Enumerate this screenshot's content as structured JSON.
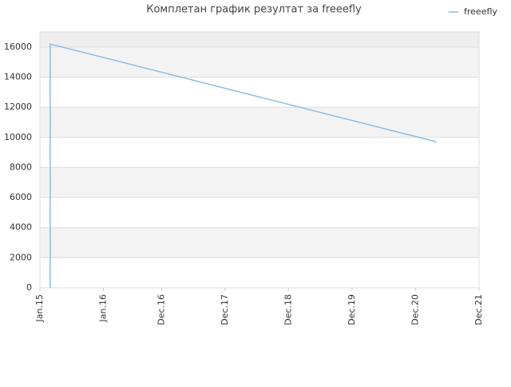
{
  "chart_data": {
    "type": "line",
    "title": "Комплетан график резултат за freeefly",
    "x": [
      "2015-03",
      "2015-03",
      "2021-04"
    ],
    "series": [
      {
        "name": "freeefly",
        "color": "#88bde8",
        "values": [
          0,
          16200,
          9700
        ]
      }
    ],
    "xlim": [
      "2015-01",
      "2021-12"
    ],
    "xticks": [
      {
        "value": "2015-01",
        "label": "Jan.15"
      },
      {
        "value": "2016-01",
        "label": "Jan.16"
      },
      {
        "value": "2016-12",
        "label": "Dec.16"
      },
      {
        "value": "2017-12",
        "label": "Dec.17"
      },
      {
        "value": "2018-12",
        "label": "Dec.18"
      },
      {
        "value": "2019-12",
        "label": "Dec.19"
      },
      {
        "value": "2020-12",
        "label": "Dec.20"
      },
      {
        "value": "2021-12",
        "label": "Dec.21"
      }
    ],
    "ylim": [
      0,
      17000
    ],
    "yticks": [
      0,
      2000,
      4000,
      6000,
      8000,
      10000,
      12000,
      14000,
      16000
    ],
    "grid": true,
    "legend": "top-right"
  }
}
